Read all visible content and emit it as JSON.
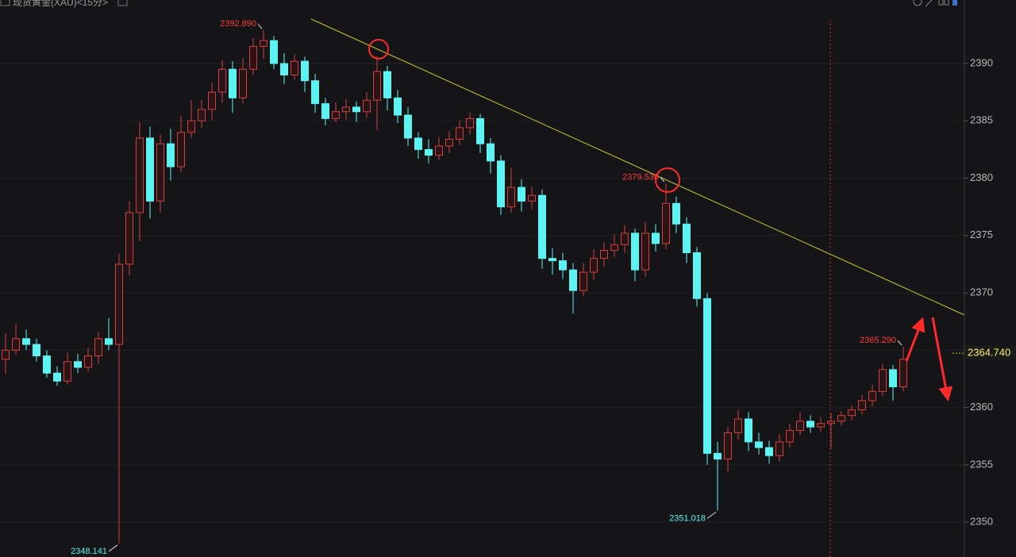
{
  "chart_data": {
    "type": "candlestick",
    "title": "现货黄金(XAU)<15分>",
    "ylim": [
      2346.96,
      2395.54
    ],
    "yticks": [
      2350,
      2355,
      2360,
      2365,
      2370,
      2375,
      2380,
      2385,
      2390
    ],
    "grid": true,
    "up_color": "#d2403f",
    "down_color": "#5ef3f3",
    "ohlc": [
      [
        2364.2,
        2366.5,
        2362.9,
        2365
      ],
      [
        2365,
        2367.3,
        2364.6,
        2366
      ],
      [
        2366,
        2366.8,
        2365,
        2365.5
      ],
      [
        2365.5,
        2366,
        2364,
        2364.5
      ],
      [
        2364.5,
        2365,
        2362.6,
        2363
      ],
      [
        2363,
        2363.6,
        2361.9,
        2362.3
      ],
      [
        2362.3,
        2364.8,
        2362,
        2364
      ],
      [
        2364,
        2364.7,
        2363,
        2363.5
      ],
      [
        2363.5,
        2365.2,
        2363.1,
        2364.5
      ],
      [
        2364.5,
        2366.6,
        2363.8,
        2366
      ],
      [
        2366,
        2367.8,
        2365,
        2365.5
      ],
      [
        2365.5,
        2373.4,
        2348.141,
        2372.5
      ],
      [
        2372.5,
        2378,
        2371.5,
        2377
      ],
      [
        2377,
        2384.9,
        2374.5,
        2383.5
      ],
      [
        2383.5,
        2384.5,
        2376.5,
        2378
      ],
      [
        2378,
        2383.8,
        2377,
        2383
      ],
      [
        2383,
        2384.3,
        2379.8,
        2381
      ],
      [
        2381,
        2385.4,
        2380.5,
        2384
      ],
      [
        2384,
        2386.8,
        2383.5,
        2385
      ],
      [
        2385,
        2386.8,
        2384.4,
        2386
      ],
      [
        2386,
        2388.3,
        2385.1,
        2387.5
      ],
      [
        2387.5,
        2390.3,
        2386.6,
        2389.5
      ],
      [
        2389.5,
        2390.2,
        2385.7,
        2387
      ],
      [
        2387,
        2390.5,
        2386.5,
        2389.5
      ],
      [
        2389.5,
        2392.2,
        2389,
        2391.5
      ],
      [
        2391.5,
        2392.89,
        2390.4,
        2392
      ],
      [
        2392,
        2392.4,
        2389.5,
        2390
      ],
      [
        2390,
        2390.9,
        2388.2,
        2389
      ],
      [
        2389,
        2390.8,
        2388.6,
        2390.2
      ],
      [
        2390.2,
        2390.6,
        2387.5,
        2388.5
      ],
      [
        2388.5,
        2389.1,
        2385.7,
        2386.5
      ],
      [
        2386.5,
        2387,
        2384.6,
        2385.2
      ],
      [
        2385.2,
        2386.6,
        2384.9,
        2385.8
      ],
      [
        2385.8,
        2386.9,
        2385.1,
        2386.2
      ],
      [
        2386.2,
        2386.7,
        2384.9,
        2385.8
      ],
      [
        2385.8,
        2387.5,
        2385.3,
        2386.8
      ],
      [
        2386.8,
        2390.6,
        2384.2,
        2389.3
      ],
      [
        2389.3,
        2389.8,
        2385.9,
        2387
      ],
      [
        2387,
        2387.7,
        2384.8,
        2385.5
      ],
      [
        2385.5,
        2386.2,
        2382.8,
        2383.5
      ],
      [
        2383.5,
        2384,
        2381.7,
        2382.5
      ],
      [
        2382.5,
        2383.4,
        2381.3,
        2382
      ],
      [
        2382,
        2383.6,
        2381.6,
        2382.8
      ],
      [
        2382.8,
        2384.1,
        2382.2,
        2383.4
      ],
      [
        2383.4,
        2385,
        2382.9,
        2384.4
      ],
      [
        2384.4,
        2385.7,
        2383.8,
        2385.2
      ],
      [
        2385.2,
        2385.6,
        2382.2,
        2383
      ],
      [
        2383,
        2383.5,
        2380.4,
        2381.5
      ],
      [
        2381.5,
        2382,
        2376.8,
        2377.5
      ],
      [
        2377.5,
        2380.9,
        2377,
        2379.2
      ],
      [
        2379.2,
        2379.9,
        2377.1,
        2378
      ],
      [
        2378,
        2379.2,
        2377.3,
        2378.5
      ],
      [
        2378.5,
        2379,
        2372.1,
        2373
      ],
      [
        2373,
        2373.9,
        2371.6,
        2372.8
      ],
      [
        2372.8,
        2373.5,
        2371.2,
        2372
      ],
      [
        2372,
        2372.6,
        2368.2,
        2370.2
      ],
      [
        2370.2,
        2372.6,
        2369.7,
        2371.8
      ],
      [
        2371.8,
        2373.8,
        2371.1,
        2373
      ],
      [
        2373,
        2374.4,
        2372.3,
        2373.7
      ],
      [
        2373.7,
        2375.1,
        2373.1,
        2374.2
      ],
      [
        2374.2,
        2375.9,
        2373.5,
        2375.2
      ],
      [
        2375.2,
        2375.6,
        2371,
        2372
      ],
      [
        2372,
        2376.2,
        2371.4,
        2375.2
      ],
      [
        2375.2,
        2376,
        2373.6,
        2374.3
      ],
      [
        2374.3,
        2379.53,
        2373.8,
        2377.8
      ],
      [
        2377.8,
        2378.4,
        2375.2,
        2376
      ],
      [
        2376,
        2376.6,
        2372.6,
        2373.5
      ],
      [
        2373.5,
        2374,
        2368.8,
        2369.5
      ],
      [
        2369.5,
        2370,
        2355,
        2356
      ],
      [
        2356,
        2357,
        2351.018,
        2355.5
      ],
      [
        2355.5,
        2358.3,
        2354.4,
        2357.8
      ],
      [
        2357.8,
        2359.8,
        2357.2,
        2359
      ],
      [
        2359,
        2359.6,
        2356.2,
        2357
      ],
      [
        2357,
        2357.8,
        2355.9,
        2356.5
      ],
      [
        2356.5,
        2357.1,
        2355.1,
        2355.8
      ],
      [
        2355.8,
        2357.7,
        2355.3,
        2357
      ],
      [
        2357,
        2358.6,
        2356.5,
        2358
      ],
      [
        2358,
        2359.6,
        2357.6,
        2358.8
      ],
      [
        2358.8,
        2359.3,
        2357.8,
        2358.3
      ],
      [
        2358.3,
        2359.2,
        2357.9,
        2358.6
      ],
      [
        2358.6,
        2359.5,
        2356.4,
        2358.8
      ],
      [
        2358.8,
        2359.7,
        2358.4,
        2359.3
      ],
      [
        2359.3,
        2360.2,
        2358.9,
        2359.8
      ],
      [
        2359.8,
        2361.1,
        2359.4,
        2360.6
      ],
      [
        2360.6,
        2362,
        2360.1,
        2361.4
      ],
      [
        2361.4,
        2363.8,
        2361,
        2363.3
      ],
      [
        2363.3,
        2363.7,
        2360.6,
        2361.8
      ],
      [
        2361.8,
        2365.29,
        2361.4,
        2364.2
      ]
    ],
    "annotations": [
      {
        "value": 2392.89,
        "label": "2392.890",
        "color": "#ff3a3a"
      },
      {
        "value": 2379.53,
        "label": "2379.530",
        "color": "#ff3a3a"
      },
      {
        "value": 2365.29,
        "label": "2365.290",
        "color": "#ff3a3a"
      },
      {
        "value": 2351.018,
        "label": "2351.018",
        "color": "#5ef3f3"
      },
      {
        "value": 2348.141,
        "label": "2348.141",
        "color": "#5ef3f3"
      }
    ],
    "last_price": {
      "value": 2364.74,
      "label": "2364.740"
    }
  }
}
